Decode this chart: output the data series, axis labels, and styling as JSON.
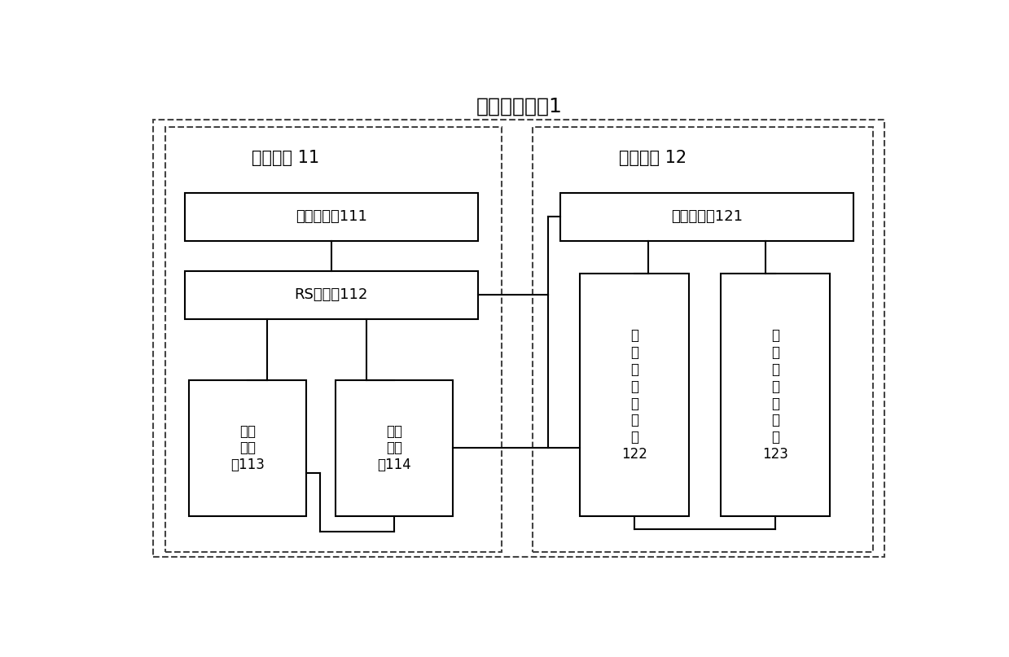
{
  "title": "电平转换电路1",
  "left_label": "输入电路 11",
  "right_label": "转换电路 12",
  "inverter_label": "第一反相器111",
  "rs_label": "RS触发器112",
  "delay1_label": "第一\n延时\n器113",
  "delay2_label": "第二\n延时\n器114",
  "ctrl_label": "控制子电路121",
  "out1_label": "第\n一\n输\n出\n子\n电\n路\n122",
  "out2_label": "第\n二\n输\n出\n子\n电\n路\n123",
  "figsize": [
    12.39,
    8.07
  ],
  "dpi": 100,
  "bg_color": "#ffffff"
}
